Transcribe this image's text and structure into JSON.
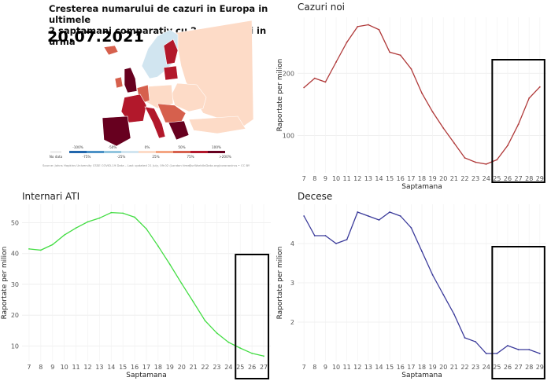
{
  "map": {
    "title_line1": "Cresterea numarului de cazuri in Europa in ultimele",
    "title_line2": "2 saptamani comparativ cu 2 saptamani in urma",
    "date": "20.07.2021",
    "legend_top": [
      "-100%",
      "-50%",
      "0%",
      "50%",
      "100%"
    ],
    "legend_bottom": [
      "No data",
      "-75%",
      "-25%",
      "25%",
      "75%",
      ">200%"
    ],
    "legend_colors": [
      "#2166ac",
      "#4b91c6",
      "#92c5de",
      "#d1e5f0",
      "#fddbc7",
      "#f4a582",
      "#d6604d",
      "#b2182b",
      "#67001f"
    ],
    "source_left": "Source: Johns Hopkins University CSSE COVID-19 Data – Last updated 21 July, 09:02 (London time)",
    "source_right": "OurWorldInData.org/coronavirus • CC BY"
  },
  "chart_data": [
    {
      "id": "cazuri",
      "type": "line",
      "title": "Cazuri noi",
      "xlabel": "Saptamana",
      "ylabel": "Raportate per milion",
      "color": "#b03a3a",
      "x": [
        7,
        8,
        9,
        10,
        11,
        12,
        13,
        14,
        15,
        16,
        17,
        18,
        19,
        20,
        21,
        22,
        23,
        24,
        25,
        26,
        27,
        28,
        29
      ],
      "values": [
        177,
        192,
        186,
        218,
        250,
        275,
        278,
        270,
        234,
        229,
        207,
        168,
        138,
        112,
        88,
        64,
        57,
        54,
        61,
        84,
        118,
        160,
        178
      ],
      "yticks": [
        100,
        200
      ],
      "ylim": [
        40,
        290
      ],
      "highlight_weeks": [
        25,
        29
      ]
    },
    {
      "id": "ati",
      "type": "line",
      "title": "Internari ATI",
      "xlabel": "Saptamana",
      "ylabel": "Raportate per milion",
      "color": "#44dd44",
      "x": [
        7,
        8,
        9,
        10,
        11,
        12,
        13,
        14,
        15,
        16,
        17,
        18,
        19,
        20,
        21,
        22,
        23,
        24,
        25,
        26,
        27
      ],
      "values": [
        41.5,
        41.1,
        42.9,
        46.0,
        48.3,
        50.3,
        51.5,
        53.3,
        53.1,
        51.8,
        48.0,
        42.4,
        36.5,
        30.3,
        24.3,
        18.2,
        14.2,
        11.2,
        9.3,
        7.6,
        6.7
      ],
      "yticks": [
        10,
        20,
        30,
        40,
        50
      ],
      "ylim": [
        5,
        56
      ],
      "highlight_weeks": [
        25,
        27
      ]
    },
    {
      "id": "decese",
      "type": "line",
      "title": "Decese",
      "xlabel": "Saptamana",
      "ylabel": "Raportate per milion",
      "color": "#3a3a9a",
      "x": [
        7,
        8,
        9,
        10,
        11,
        12,
        13,
        14,
        15,
        16,
        17,
        18,
        19,
        20,
        21,
        22,
        23,
        24,
        25,
        26,
        27,
        28,
        29
      ],
      "values": [
        4.7,
        4.2,
        4.2,
        4.0,
        4.1,
        4.8,
        4.7,
        4.6,
        4.8,
        4.7,
        4.4,
        3.8,
        3.2,
        2.7,
        2.2,
        1.6,
        1.5,
        1.2,
        1.2,
        1.4,
        1.3,
        1.3,
        1.2
      ],
      "yticks": [
        2,
        3,
        4
      ],
      "ylim": [
        1.0,
        5.0
      ],
      "highlight_weeks": [
        25,
        29
      ]
    }
  ]
}
